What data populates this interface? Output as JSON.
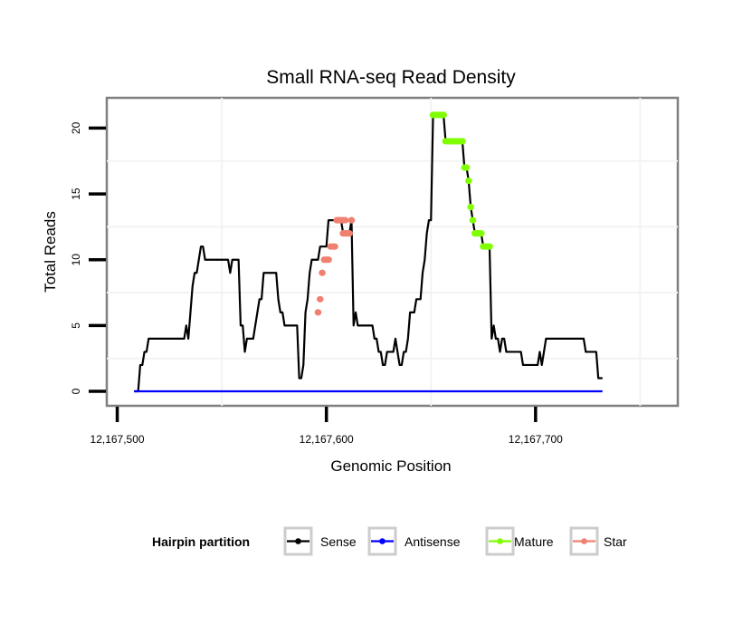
{
  "chart_data": {
    "type": "line",
    "title": "Small RNA-seq Read Density",
    "xlabel": "Genomic Position",
    "ylabel": "Total Reads",
    "xlim": [
      12167495,
      12167768
    ],
    "ylim": [
      -1.1,
      22.3
    ],
    "x_ticks": [
      12167500,
      12167600,
      12167700
    ],
    "x_tick_labels": [
      "12,167,500",
      "12,167,600",
      "12,167,700"
    ],
    "y_ticks": [
      0,
      5,
      10,
      15,
      20
    ],
    "y_tick_labels": [
      "0",
      "5",
      "10",
      "15",
      "20"
    ],
    "grid": true,
    "legend": {
      "title": "Hairpin partition",
      "placement": "bottom",
      "entries": [
        {
          "label": "Sense",
          "color": "#000000"
        },
        {
          "label": "Antisense",
          "color": "#0000ff"
        },
        {
          "label": "Mature",
          "color": "#7fff00"
        },
        {
          "label": "Star",
          "color": "#f08070"
        }
      ]
    },
    "series": [
      {
        "name": "Sense",
        "color": "#000000",
        "x_offset_base": 12167500,
        "points": [
          [
            8,
            0
          ],
          [
            10,
            0
          ],
          [
            11,
            2
          ],
          [
            12,
            2
          ],
          [
            13,
            3
          ],
          [
            14,
            3
          ],
          [
            15,
            4
          ],
          [
            32,
            4
          ],
          [
            33,
            5
          ],
          [
            34,
            4
          ],
          [
            35,
            6
          ],
          [
            36,
            8
          ],
          [
            37,
            9
          ],
          [
            38,
            9
          ],
          [
            39,
            10
          ],
          [
            40,
            11
          ],
          [
            41,
            11
          ],
          [
            42,
            10
          ],
          [
            53,
            10
          ],
          [
            54,
            9
          ],
          [
            55,
            10
          ],
          [
            58,
            10
          ],
          [
            59,
            5
          ],
          [
            60,
            5
          ],
          [
            61,
            3
          ],
          [
            62,
            4
          ],
          [
            65,
            4
          ],
          [
            66,
            5
          ],
          [
            67,
            6
          ],
          [
            68,
            7
          ],
          [
            69,
            7
          ],
          [
            70,
            9
          ],
          [
            76,
            9
          ],
          [
            77,
            7
          ],
          [
            78,
            6
          ],
          [
            79,
            6
          ],
          [
            80,
            5
          ],
          [
            86,
            5
          ],
          [
            87,
            1
          ],
          [
            88,
            1
          ],
          [
            89,
            2
          ],
          [
            90,
            6
          ],
          [
            91,
            7
          ],
          [
            92,
            9
          ],
          [
            93,
            10
          ],
          [
            96,
            10
          ],
          [
            97,
            11
          ],
          [
            100,
            11
          ],
          [
            101,
            13
          ],
          [
            107,
            13
          ],
          [
            108,
            12
          ],
          [
            111,
            12
          ],
          [
            112,
            13
          ],
          [
            113,
            5
          ],
          [
            114,
            6
          ],
          [
            115,
            5
          ],
          [
            122,
            5
          ],
          [
            123,
            4
          ],
          [
            124,
            4
          ],
          [
            125,
            3
          ],
          [
            126,
            3
          ],
          [
            127,
            2
          ],
          [
            128,
            2
          ],
          [
            129,
            3
          ],
          [
            132,
            3
          ],
          [
            133,
            4
          ],
          [
            134,
            3
          ],
          [
            135,
            2
          ],
          [
            136,
            2
          ],
          [
            137,
            3
          ],
          [
            138,
            3
          ],
          [
            139,
            4
          ],
          [
            140,
            6
          ],
          [
            142,
            6
          ],
          [
            143,
            7
          ],
          [
            145,
            7
          ],
          [
            146,
            9
          ],
          [
            147,
            10
          ],
          [
            148,
            12
          ],
          [
            149,
            13
          ],
          [
            150,
            13
          ],
          [
            151,
            21
          ],
          [
            156,
            21
          ],
          [
            157,
            19
          ],
          [
            165,
            19
          ],
          [
            166,
            17
          ],
          [
            167,
            17
          ],
          [
            168,
            16
          ],
          [
            169,
            14
          ],
          [
            170,
            13
          ],
          [
            171,
            12
          ],
          [
            174,
            12
          ],
          [
            175,
            11
          ],
          [
            178,
            11
          ],
          [
            179,
            4
          ],
          [
            180,
            5
          ],
          [
            181,
            4
          ],
          [
            182,
            4
          ],
          [
            183,
            3
          ],
          [
            184,
            4
          ],
          [
            185,
            4
          ],
          [
            186,
            3
          ],
          [
            193,
            3
          ],
          [
            194,
            2
          ],
          [
            201,
            2
          ],
          [
            202,
            3
          ],
          [
            203,
            2
          ],
          [
            204,
            3
          ],
          [
            205,
            4
          ],
          [
            223,
            4
          ],
          [
            224,
            3
          ],
          [
            229,
            3
          ],
          [
            230,
            1
          ],
          [
            232,
            1
          ]
        ]
      },
      {
        "name": "Antisense",
        "color": "#0000ff",
        "x_offset_base": 12167500,
        "points": [
          [
            8,
            0
          ],
          [
            232,
            0
          ]
        ]
      },
      {
        "name": "Mature",
        "color": "#7fff00",
        "x_offset_base": 12167500,
        "points": [
          [
            151,
            21
          ],
          [
            152,
            21
          ],
          [
            153,
            21
          ],
          [
            154,
            21
          ],
          [
            155,
            21
          ],
          [
            156,
            21
          ],
          [
            157,
            19
          ],
          [
            158,
            19
          ],
          [
            159,
            19
          ],
          [
            160,
            19
          ],
          [
            161,
            19
          ],
          [
            162,
            19
          ],
          [
            163,
            19
          ],
          [
            164,
            19
          ],
          [
            165,
            19
          ],
          [
            166,
            17
          ],
          [
            167,
            17
          ],
          [
            168,
            16
          ],
          [
            169,
            14
          ],
          [
            170,
            13
          ],
          [
            171,
            12
          ],
          [
            172,
            12
          ],
          [
            173,
            12
          ],
          [
            174,
            12
          ],
          [
            175,
            11
          ],
          [
            176,
            11
          ],
          [
            177,
            11
          ],
          [
            178,
            11
          ]
        ]
      },
      {
        "name": "Star",
        "color": "#f08070",
        "x_offset_base": 12167500,
        "points": [
          [
            96,
            6
          ],
          [
            97,
            7
          ],
          [
            98,
            9
          ],
          [
            99,
            10
          ],
          [
            100,
            10
          ],
          [
            101,
            10
          ],
          [
            102,
            11
          ],
          [
            103,
            11
          ],
          [
            104,
            11
          ],
          [
            105,
            13
          ],
          [
            106,
            13
          ],
          [
            107,
            13
          ],
          [
            108,
            13
          ],
          [
            109,
            13
          ],
          [
            108,
            12
          ],
          [
            109,
            12
          ],
          [
            110,
            12
          ],
          [
            111,
            12
          ],
          [
            112,
            13
          ]
        ]
      }
    ]
  }
}
